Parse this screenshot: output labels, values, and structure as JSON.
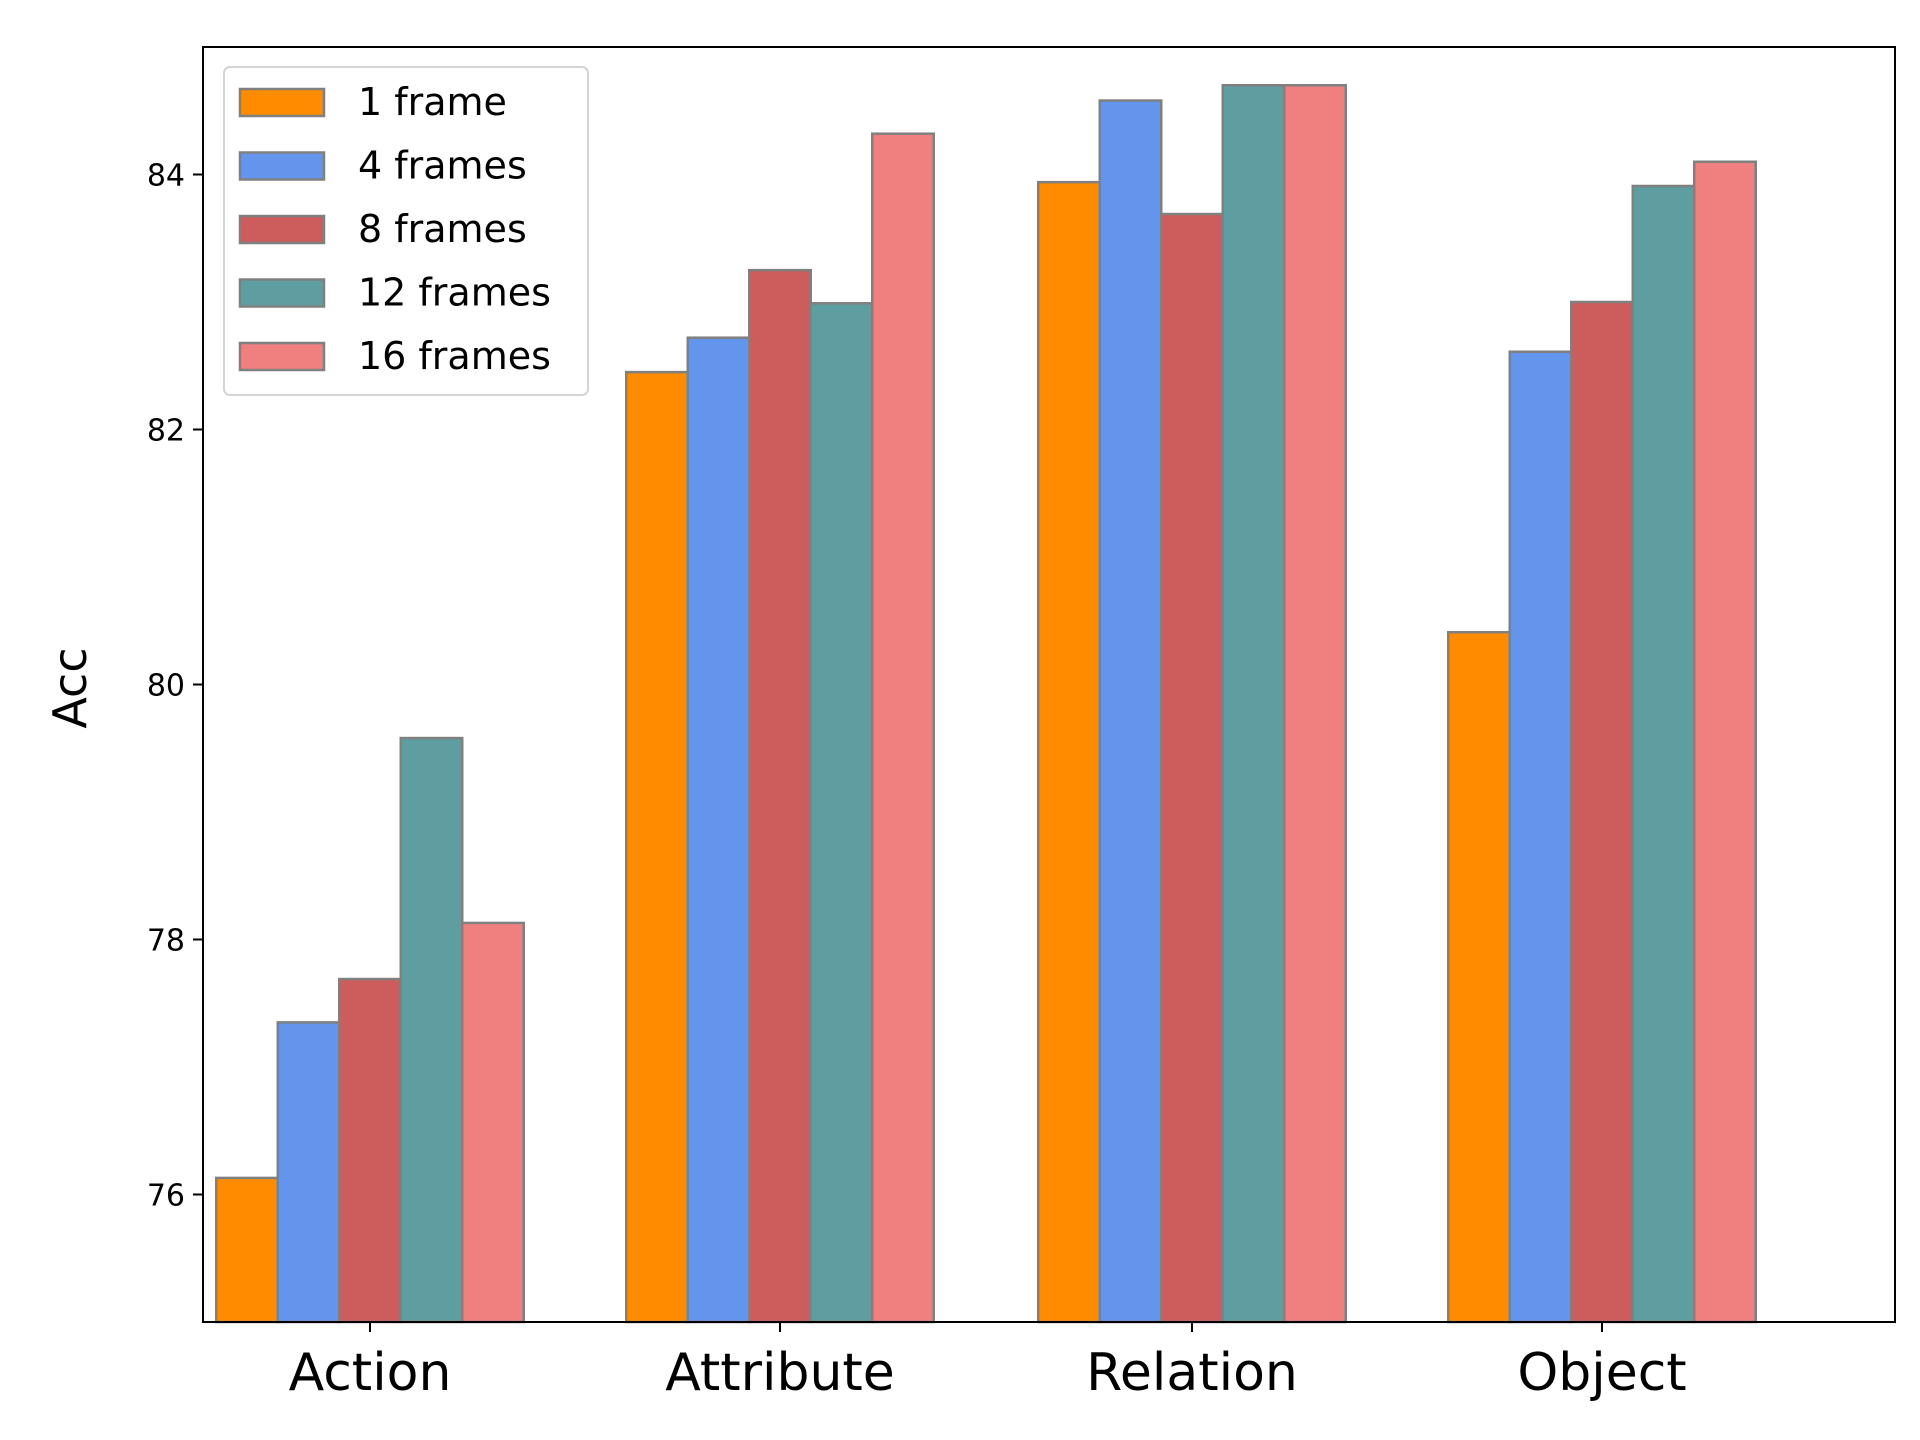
{
  "chart_data": {
    "type": "bar",
    "categories": [
      "Action",
      "Attribute",
      "Relation",
      "Object"
    ],
    "series": [
      {
        "name": "1 frame",
        "color": "#ff8c00",
        "values": [
          76.13,
          82.45,
          83.94,
          80.41
        ]
      },
      {
        "name": "4 frames",
        "color": "#6495ed",
        "values": [
          77.35,
          82.72,
          84.58,
          82.61
        ]
      },
      {
        "name": "8 frames",
        "color": "#cd5c5c",
        "values": [
          77.69,
          83.25,
          83.69,
          83.0
        ]
      },
      {
        "name": "12 frames",
        "color": "#5f9ea0",
        "values": [
          79.58,
          82.99,
          84.7,
          83.91
        ]
      },
      {
        "name": "16 frames",
        "color": "#f08080",
        "values": [
          78.13,
          84.32,
          84.7,
          84.1
        ]
      }
    ],
    "ylabel": "Acc",
    "xlabel": "",
    "ylim": [
      75,
      85
    ],
    "yticks": [
      76,
      78,
      80,
      82,
      84
    ],
    "edge_color": "#808080",
    "grid": false,
    "legend_position": "top-left"
  }
}
